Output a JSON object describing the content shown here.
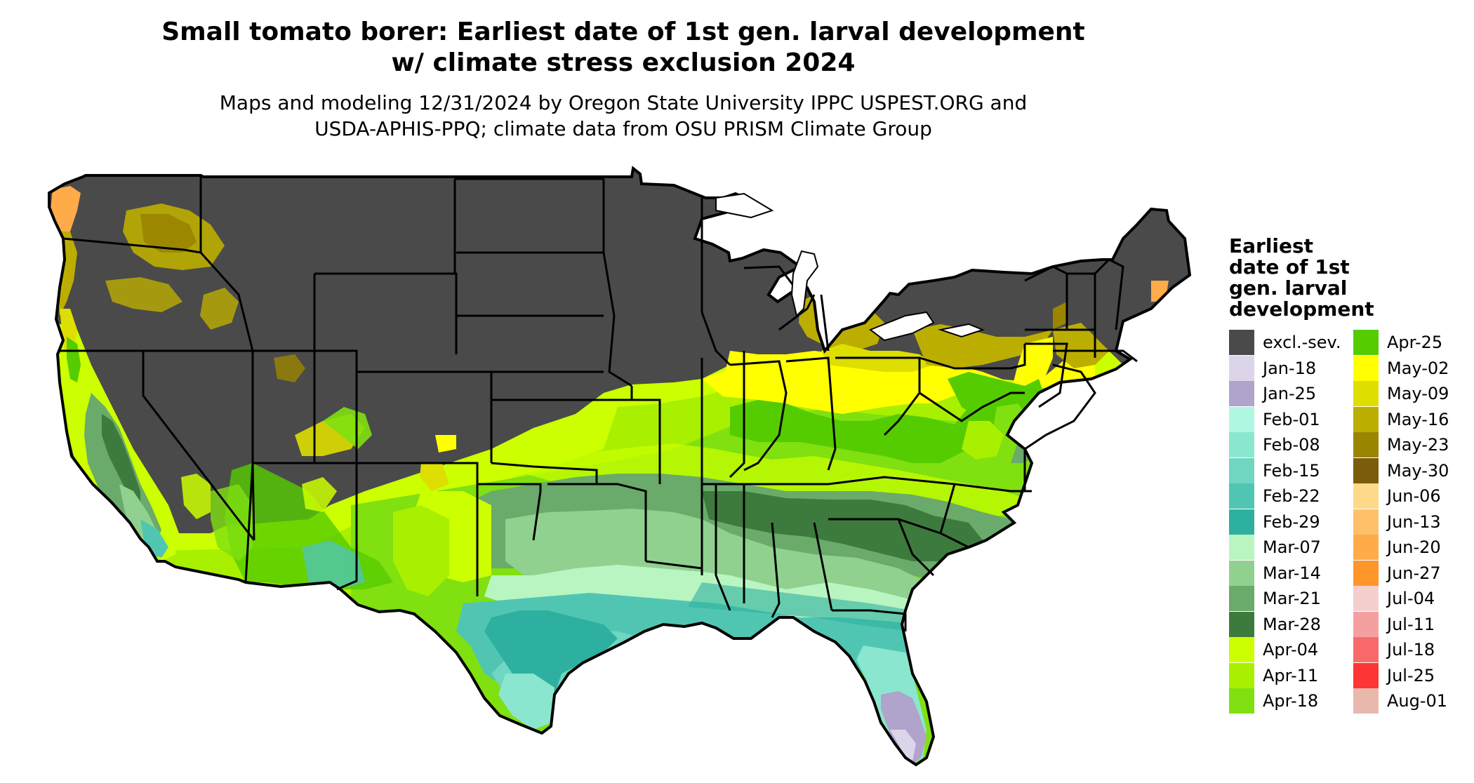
{
  "title": {
    "line1": "Small tomato borer: Earliest date of 1st gen. larval development",
    "line2": "w/ climate stress exclusion 2024"
  },
  "subtitle": {
    "line1": "Maps and modeling 12/31/2024 by Oregon State University IPPC USPEST.ORG and",
    "line2": "USDA-APHIS-PPQ; climate data from OSU PRISM Climate Group"
  },
  "legend": {
    "title_lines": [
      "Earliest",
      "date of 1st",
      "gen. larval",
      "development"
    ],
    "col1": [
      {
        "label": "excl.-sev.",
        "color": "#4a4a4a"
      },
      {
        "label": "Jan-18",
        "color": "#dcd5ea"
      },
      {
        "label": "Jan-25",
        "color": "#b0a3cc"
      },
      {
        "label": "Feb-01",
        "color": "#aef7e2"
      },
      {
        "label": "Feb-08",
        "color": "#8be6cf"
      },
      {
        "label": "Feb-15",
        "color": "#6ed6c1"
      },
      {
        "label": "Feb-22",
        "color": "#50c6b2"
      },
      {
        "label": "Feb-29",
        "color": "#2eb0a0"
      },
      {
        "label": "Mar-07",
        "color": "#b9f5c1"
      },
      {
        "label": "Mar-14",
        "color": "#90d190"
      },
      {
        "label": "Mar-21",
        "color": "#6aaa6a"
      },
      {
        "label": "Mar-28",
        "color": "#3d7a3d"
      },
      {
        "label": "Apr-04",
        "color": "#ccff00"
      },
      {
        "label": "Apr-11",
        "color": "#a8f000"
      },
      {
        "label": "Apr-18",
        "color": "#80e010"
      }
    ],
    "col2": [
      {
        "label": "Apr-25",
        "color": "#55cc00"
      },
      {
        "label": "May-02",
        "color": "#ffff00"
      },
      {
        "label": "May-09",
        "color": "#dede00"
      },
      {
        "label": "May-16",
        "color": "#bcae00"
      },
      {
        "label": "May-23",
        "color": "#9a8500"
      },
      {
        "label": "May-30",
        "color": "#7a5c0a"
      },
      {
        "label": "Jun-06",
        "color": "#ffd98a"
      },
      {
        "label": "Jun-13",
        "color": "#ffc06a"
      },
      {
        "label": "Jun-20",
        "color": "#ffab4a"
      },
      {
        "label": "Jun-27",
        "color": "#ff962a"
      },
      {
        "label": "Jul-04",
        "color": "#f5cece"
      },
      {
        "label": "Jul-11",
        "color": "#f5a0a0"
      },
      {
        "label": "Jul-18",
        "color": "#f86a6a"
      },
      {
        "label": "Jul-25",
        "color": "#ff3434"
      },
      {
        "label": "Aug-01",
        "color": "#e8b8ac"
      }
    ]
  },
  "map": {
    "land_color": "#4a4a4a",
    "border_color": "#000000",
    "water_color": "#ffffff"
  }
}
